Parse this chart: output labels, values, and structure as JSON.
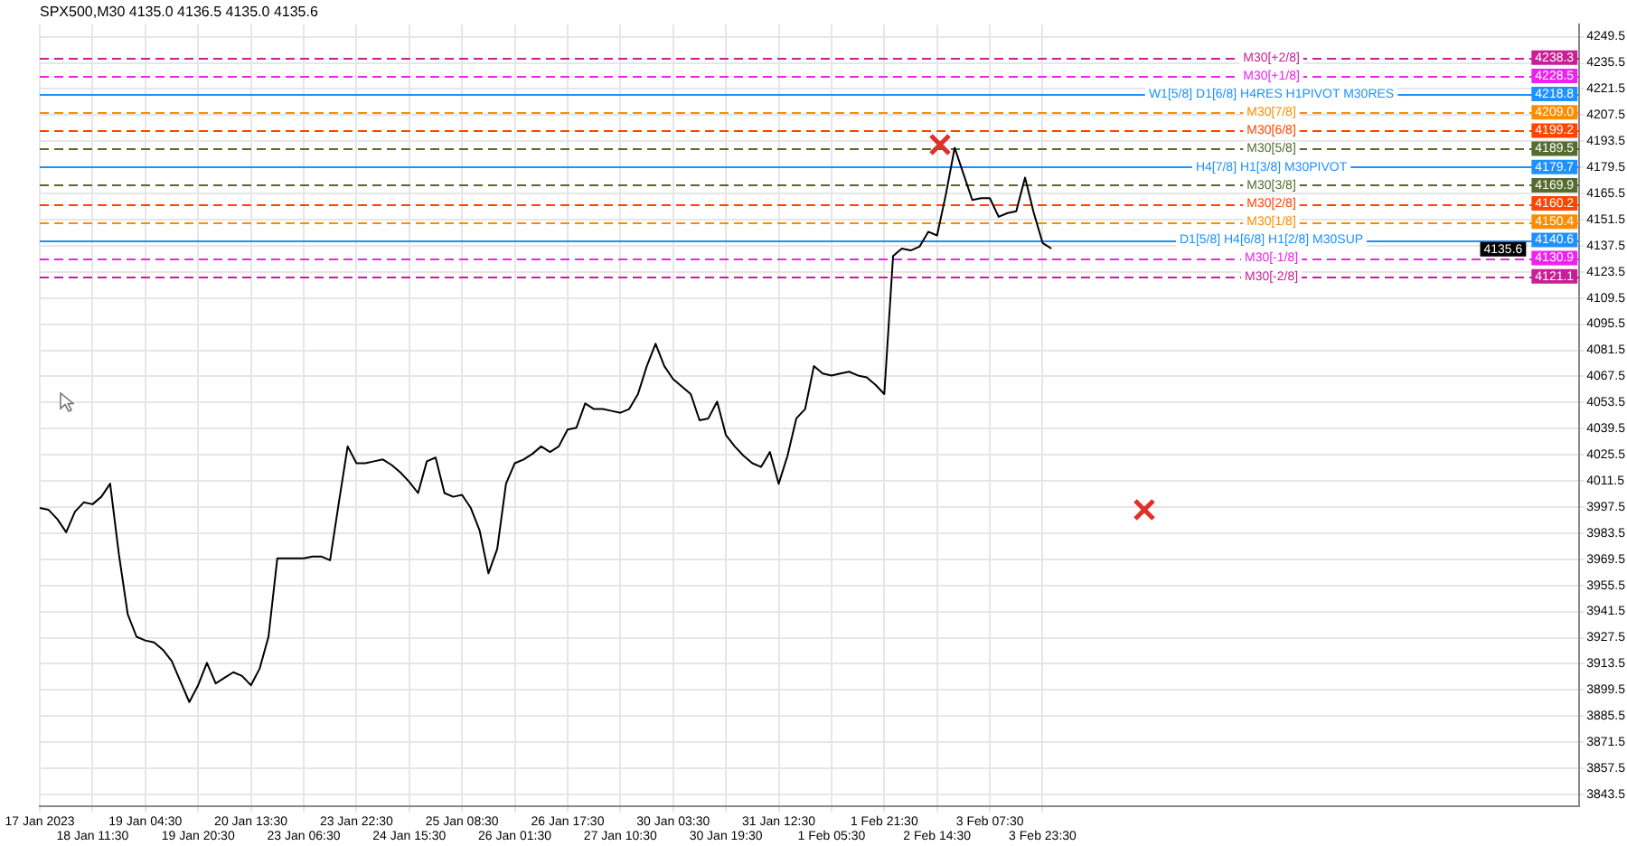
{
  "chart_data": {
    "type": "line",
    "title": "SPX500,M30 4135.0 4136.5 4135.0 4135.6",
    "categories": [
      "17 Jan 2023",
      null,
      null,
      null,
      null,
      null,
      "18 Jan 11:30",
      null,
      null,
      null,
      null,
      null,
      "19 Jan 04:30",
      null,
      null,
      null,
      null,
      null,
      "19 Jan 20:30",
      null,
      null,
      null,
      null,
      null,
      "20 Jan 13:30",
      null,
      null,
      null,
      null,
      null,
      "23 Jan 06:30",
      null,
      null,
      null,
      null,
      null,
      "23 Jan 22:30",
      null,
      null,
      null,
      null,
      null,
      "24 Jan 15:30",
      null,
      null,
      null,
      null,
      null,
      "25 Jan 08:30",
      null,
      null,
      null,
      null,
      null,
      "26 Jan 01:30",
      null,
      null,
      null,
      null,
      null,
      "26 Jan 17:30",
      null,
      null,
      null,
      null,
      null,
      "27 Jan 10:30",
      null,
      null,
      null,
      null,
      null,
      "30 Jan 03:30",
      null,
      null,
      null,
      null,
      null,
      "30 Jan 19:30",
      null,
      null,
      null,
      null,
      null,
      "31 Jan 12:30",
      null,
      null,
      null,
      null,
      null,
      "1 Feb 05:30",
      null,
      null,
      null,
      null,
      null,
      "1 Feb 21:30",
      null,
      null,
      null,
      null,
      null,
      "2 Feb 14:30",
      null,
      null,
      null,
      null,
      null,
      "3 Feb 07:30",
      null,
      null,
      null,
      null,
      null,
      "3 Feb 23:30",
      null,
      null,
      null,
      null,
      null,
      null,
      null,
      null,
      null,
      null,
      null,
      null,
      null,
      null,
      null,
      null,
      null,
      null,
      null,
      null,
      null,
      null,
      null,
      null,
      null,
      null,
      null,
      null,
      null,
      null,
      null,
      null,
      null,
      null,
      null,
      null,
      null,
      null,
      null,
      null,
      null,
      null,
      null,
      null,
      null,
      null,
      null,
      null,
      null,
      null,
      null,
      null,
      null,
      null,
      null,
      null,
      null,
      null,
      null,
      null,
      null
    ],
    "series": [
      {
        "color": "#000000",
        "values": [
          3997,
          3996,
          3991,
          3984,
          3995,
          4000,
          3999,
          4003,
          4010,
          3972,
          3940,
          3928,
          3926,
          3925,
          3921,
          3915,
          3904,
          3893,
          3902,
          3914,
          3903,
          3906,
          3909,
          3907,
          3902,
          3911,
          3928,
          3970,
          3970,
          3970,
          3970,
          3971,
          3971,
          3969,
          4000,
          4030,
          4021,
          4021,
          4022,
          4023,
          4020,
          4016,
          4011,
          4005,
          4022,
          4024,
          4005,
          4003,
          4004,
          3997,
          3985,
          3962,
          3975,
          4010,
          4021,
          4023,
          4026,
          4030,
          4027,
          4030,
          4039,
          4040,
          4053,
          4050,
          4050,
          4049,
          4048,
          4050,
          4058,
          4073,
          4085,
          4073,
          4066,
          4062,
          4058,
          4044,
          4045,
          4054,
          4036,
          4030,
          4025,
          4021,
          4019,
          4027,
          4010,
          4025,
          4045,
          4050,
          4073,
          4069,
          4068,
          4069,
          4070,
          4068,
          4067,
          4063,
          4058,
          4132,
          4136,
          4135,
          4137,
          4145,
          4143,
          4165,
          4190,
          4176,
          4162,
          4163,
          4163,
          4153,
          4155,
          4156,
          4174,
          4155,
          4139,
          4136,
          null,
          null,
          null,
          null,
          null,
          null,
          null,
          null,
          null,
          null,
          null,
          null,
          null,
          null,
          null,
          null,
          null,
          null,
          null,
          null,
          null,
          null,
          null,
          null,
          null,
          null,
          null,
          null,
          null,
          null,
          null,
          null,
          null,
          null,
          null,
          null,
          null,
          null,
          null,
          null,
          null,
          null,
          null,
          null,
          null,
          null,
          null,
          null,
          null,
          null,
          null,
          null,
          null,
          null,
          null,
          null,
          null,
          null,
          null,
          null
        ]
      }
    ],
    "marker": "none",
    "ylim": [
      3837,
      4256
    ],
    "yticks": [
      3843.5,
      3857.5,
      3871.5,
      3885.5,
      3899.5,
      3913.5,
      3927.5,
      3941.5,
      3955.5,
      3969.5,
      3983.5,
      3997.5,
      4011.5,
      4025.5,
      4039.5,
      4053.5,
      4067.5,
      4081.5,
      4095.5,
      4109.5,
      4123.5,
      4137.5,
      4151.5,
      4165.5,
      4179.5,
      4193.5,
      4207.5,
      4221.5,
      4235.5,
      4249.5
    ],
    "grid": true,
    "legend": false,
    "ref_lines": [
      {
        "axis": "y",
        "value": 4238.3,
        "label": "M30[+2/8]",
        "color": "#c81e96",
        "line_style": "dashed"
      },
      {
        "axis": "y",
        "value": 4228.5,
        "label": "M30[+1/8]",
        "color": "#ee22ee",
        "line_style": "dashed"
      },
      {
        "axis": "y",
        "value": 4218.8,
        "label": "W1[5/8] D1[6/8] H4RES H1PIVOT M30RES",
        "color": "#1e90ff",
        "line_style": "solid"
      },
      {
        "axis": "y",
        "value": 4209.0,
        "label": "M30[7/8]",
        "color": "#ff8c00",
        "line_style": "dashed"
      },
      {
        "axis": "y",
        "value": 4199.2,
        "label": "M30[6/8]",
        "color": "#ff4500",
        "line_style": "dashed"
      },
      {
        "axis": "y",
        "value": 4189.5,
        "label": "M30[5/8]",
        "color": "#556b2f",
        "line_style": "dashed"
      },
      {
        "axis": "y",
        "value": 4179.7,
        "label": "H4[7/8] H1[3/8] M30PIVOT",
        "color": "#1e90ff",
        "line_style": "solid"
      },
      {
        "axis": "y",
        "value": 4169.9,
        "label": "M30[3/8]",
        "color": "#556b2f",
        "line_style": "dashed"
      },
      {
        "axis": "y",
        "value": 4160.2,
        "label": "M30[2/8]",
        "color": "#ff4500",
        "line_style": "dashed"
      },
      {
        "axis": "y",
        "value": 4150.4,
        "label": "M30[1/8]",
        "color": "#ff8c00",
        "line_style": "dashed"
      },
      {
        "axis": "y",
        "value": 4140.6,
        "label": "D1[5/8] H4[6/8] H1[2/8] M30SUP",
        "color": "#1e90ff",
        "line_style": "solid"
      },
      {
        "axis": "y",
        "value": 4130.9,
        "label": "M30[-1/8]",
        "color": "#ee22ee",
        "line_style": "dashed"
      },
      {
        "axis": "y",
        "value": 4121.1,
        "label": "M30[-2/8]",
        "color": "#c81e96",
        "line_style": "dashed"
      }
    ],
    "annotations": [
      {
        "text": "4238.3",
        "y": 4238.3
      },
      {
        "text": "4228.5",
        "y": 4228.5
      },
      {
        "text": "4218.8",
        "y": 4218.8
      },
      {
        "text": "4209.0",
        "y": 4209.0
      },
      {
        "text": "4199.2",
        "y": 4199.2
      },
      {
        "text": "4189.5",
        "y": 4189.5
      },
      {
        "text": "4179.7",
        "y": 4179.7
      },
      {
        "text": "4169.9",
        "y": 4169.9
      },
      {
        "text": "4160.2",
        "y": 4160.2
      },
      {
        "text": "4150.4",
        "y": 4150.4
      },
      {
        "text": "4140.6",
        "y": 4140.6
      },
      {
        "text": "4135.6",
        "y": 4135.6
      },
      {
        "text": "4130.9",
        "y": 4130.9
      },
      {
        "text": "4121.1",
        "y": 4121.1
      }
    ]
  }
}
